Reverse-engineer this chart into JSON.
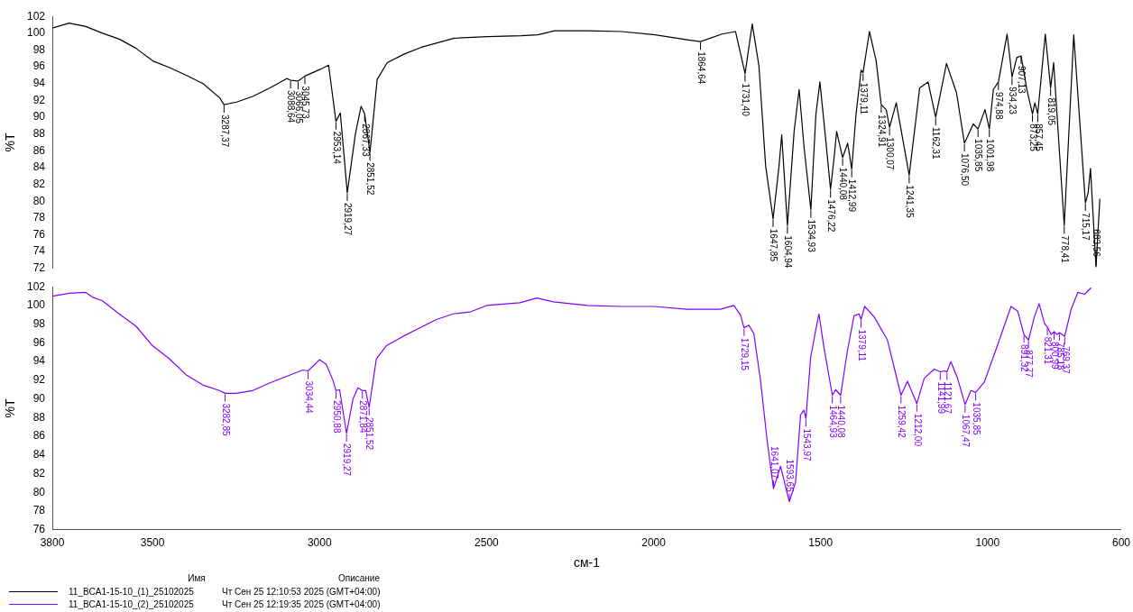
{
  "chart_data": [
    {
      "type": "line",
      "ylabel": "%T",
      "xlim": [
        3800,
        600
      ],
      "xticks": [
        3800,
        3500,
        3000,
        2500,
        2000,
        1500,
        1000,
        600
      ],
      "ylim": [
        72,
        102
      ],
      "yticks": [
        72,
        74,
        76,
        78,
        80,
        82,
        84,
        86,
        88,
        90,
        92,
        94,
        96,
        98,
        100,
        102
      ],
      "tick_labels": "y",
      "grid": false,
      "marker": "none",
      "line_style": "solid",
      "x": [
        3800,
        3750,
        3700,
        3650,
        3600,
        3550,
        3500,
        3450,
        3400,
        3350,
        3300,
        3287.37,
        3250,
        3200,
        3150,
        3100,
        3088.64,
        3066.05,
        3045.73,
        3000,
        2975,
        2953.14,
        2940,
        2919.27,
        2895,
        2878,
        2867.33,
        2851.52,
        2830,
        2800,
        2750,
        2700,
        2600,
        2500,
        2400,
        2350,
        2300,
        2200,
        2100,
        2000,
        1900,
        1864.64,
        1800,
        1760,
        1731.4,
        1710,
        1690,
        1670,
        1647.85,
        1630,
        1622,
        1604.94,
        1585,
        1570,
        1555,
        1534.93,
        1520,
        1508,
        1490,
        1476.22,
        1465,
        1458,
        1440.08,
        1425,
        1412.99,
        1400,
        1385,
        1379.11,
        1360,
        1340,
        1324.91,
        1310,
        1300.07,
        1280,
        1241.35,
        1210,
        1185,
        1162.31,
        1130,
        1100,
        1076.5,
        1050,
        1035.85,
        1015,
        1001.98,
        990,
        974.88,
        949,
        934.23,
        920,
        907.13,
        890,
        873.25,
        866,
        857.45,
        835,
        819.05,
        810,
        778.41,
        750,
        715.17,
        707,
        700,
        683.56,
        672
      ],
      "series": [
        {
          "name": "11_BCA1-15-10_(1)_25102025",
          "color": "#000000",
          "values": [
            100.6,
            101.2,
            100.8,
            100.0,
            99.3,
            98.2,
            96.7,
            95.9,
            95.0,
            94.0,
            92.3,
            91.5,
            91.8,
            92.5,
            93.5,
            94.6,
            94.4,
            94.3,
            94.9,
            95.7,
            96.2,
            89.5,
            90.5,
            81.0,
            88.0,
            91.3,
            90.4,
            85.8,
            94.5,
            96.5,
            97.5,
            98.3,
            99.4,
            99.6,
            99.7,
            99.8,
            100.3,
            100.3,
            100.2,
            99.8,
            99.2,
            99.0,
            99.9,
            100.2,
            95.2,
            101.1,
            96.1,
            84.2,
            77.9,
            84.2,
            87.9,
            77.1,
            88.3,
            93.3,
            86.3,
            79.0,
            90.3,
            94.2,
            87.1,
            81.4,
            85.4,
            88.3,
            85.2,
            86.9,
            83.8,
            90.4,
            95.6,
            95.3,
            100.2,
            96.7,
            91.5,
            90.9,
            88.8,
            91.7,
            83.1,
            93.5,
            94.2,
            90.0,
            96.4,
            92.9,
            86.9,
            89.2,
            88.6,
            90.9,
            88.6,
            93.3,
            94.2,
            99.9,
            94.8,
            97.1,
            97.3,
            93.3,
            90.4,
            91.7,
            90.4,
            99.9,
            93.5,
            96.5,
            77.1,
            99.8,
            79.8,
            81.0,
            83.9,
            72.2,
            80.3
          ]
        }
      ],
      "annotations": [
        {
          "text": "3287,37",
          "x": 3287.37,
          "y": 91.5
        },
        {
          "text": "3088,64",
          "x": 3088.64,
          "y": 94.4
        },
        {
          "text": "3066,05",
          "x": 3066.05,
          "y": 94.3
        },
        {
          "text": "3045,73",
          "x": 3045.73,
          "y": 94.9
        },
        {
          "text": "2953,14",
          "x": 2953.14,
          "y": 89.5
        },
        {
          "text": "2919,27",
          "x": 2919.27,
          "y": 81.0
        },
        {
          "text": "2867,33",
          "x": 2867.33,
          "y": 90.4
        },
        {
          "text": "2851,52",
          "x": 2851.52,
          "y": 85.8
        },
        {
          "text": "1864,64",
          "x": 1864.64,
          "y": 99.0
        },
        {
          "text": "1731,40",
          "x": 1731.4,
          "y": 95.2
        },
        {
          "text": "1647,85",
          "x": 1647.85,
          "y": 77.9
        },
        {
          "text": "1604,94",
          "x": 1604.94,
          "y": 77.1
        },
        {
          "text": "1534,93",
          "x": 1534.93,
          "y": 79.0
        },
        {
          "text": "1476,22",
          "x": 1476.22,
          "y": 81.4
        },
        {
          "text": "1440,08",
          "x": 1440.08,
          "y": 85.2
        },
        {
          "text": "1412,99",
          "x": 1412.99,
          "y": 83.8
        },
        {
          "text": "1379,11",
          "x": 1379.11,
          "y": 95.3
        },
        {
          "text": "1324,91",
          "x": 1324.91,
          "y": 91.5
        },
        {
          "text": "1300,07",
          "x": 1300.07,
          "y": 88.8
        },
        {
          "text": "1241,35",
          "x": 1241.35,
          "y": 83.1
        },
        {
          "text": "1162,31",
          "x": 1162.31,
          "y": 90.0
        },
        {
          "text": "1076,50",
          "x": 1076.5,
          "y": 86.9
        },
        {
          "text": "1035,85",
          "x": 1035.85,
          "y": 88.6
        },
        {
          "text": "1001,98",
          "x": 1001.98,
          "y": 88.6
        },
        {
          "text": "974,88",
          "x": 974.88,
          "y": 94.2
        },
        {
          "text": "934,23",
          "x": 934.23,
          "y": 94.8
        },
        {
          "text": "907,13",
          "x": 907.13,
          "y": 97.3
        },
        {
          "text": "873,25",
          "x": 873.25,
          "y": 90.4
        },
        {
          "text": "857,45",
          "x": 857.45,
          "y": 90.4
        },
        {
          "text": "819,05",
          "x": 819.05,
          "y": 93.5
        },
        {
          "text": "778,41",
          "x": 778.41,
          "y": 77.1
        },
        {
          "text": "715,17",
          "x": 715.17,
          "y": 79.8
        },
        {
          "text": "683,56",
          "x": 683.56,
          "y": 72.2
        }
      ]
    },
    {
      "type": "line",
      "ylabel": "%T",
      "xlabel": "см-1",
      "legend": "bottom",
      "legend_title": "Имя",
      "xlim": [
        3800,
        600
      ],
      "xticks": [
        3800,
        3500,
        3000,
        2500,
        2000,
        1500,
        1000,
        600
      ],
      "ylim": [
        76,
        102
      ],
      "yticks": [
        76,
        78,
        80,
        82,
        84,
        86,
        88,
        90,
        92,
        94,
        96,
        98,
        100,
        102
      ],
      "grid": false,
      "marker": "none",
      "line_style": "solid",
      "x": [
        3800,
        3750,
        3700,
        3680,
        3650,
        3600,
        3550,
        3500,
        3450,
        3400,
        3350,
        3300,
        3282.85,
        3250,
        3200,
        3150,
        3100,
        3050,
        3034.44,
        3000,
        2980,
        2960,
        2950.88,
        2940,
        2919.27,
        2900,
        2885,
        2871.84,
        2862,
        2851.52,
        2830,
        2800,
        2750,
        2700,
        2650,
        2600,
        2550,
        2500,
        2400,
        2350,
        2300,
        2200,
        2100,
        2000,
        1900,
        1800,
        1760,
        1740,
        1729.15,
        1715,
        1700,
        1680,
        1660,
        1641.07,
        1620,
        1593.65,
        1575,
        1560,
        1550,
        1543.97,
        1530,
        1515,
        1505,
        1490,
        1464.93,
        1455,
        1440.08,
        1420,
        1400,
        1385,
        1379.11,
        1368,
        1340,
        1300,
        1259.42,
        1240,
        1212,
        1190,
        1160,
        1141.99,
        1130,
        1121.67,
        1110,
        1090,
        1067.47,
        1050,
        1035.85,
        1010,
        970,
        930,
        910,
        891.32,
        877.77,
        860,
        846,
        830,
        821.31,
        810,
        800.99,
        793,
        785.18,
        769.37,
        750,
        730,
        710,
        690
      ],
      "series": [
        {
          "name": "11_BCA1-15-10_(2)_25102025",
          "color": "#8000ff",
          "values": [
            101.0,
            101.3,
            101.4,
            100.9,
            100.5,
            99.1,
            97.8,
            95.7,
            94.3,
            92.6,
            91.5,
            90.9,
            90.6,
            90.6,
            90.9,
            91.7,
            92.4,
            93.1,
            93.0,
            94.2,
            93.7,
            92.0,
            90.9,
            91.0,
            86.3,
            90.0,
            91.2,
            90.9,
            90.9,
            89.1,
            94.3,
            95.7,
            96.7,
            97.6,
            98.5,
            99.1,
            99.3,
            100.0,
            100.3,
            100.8,
            100.4,
            100.0,
            99.9,
            99.9,
            99.6,
            99.6,
            100.0,
            99.0,
            97.6,
            97.9,
            97.0,
            92.0,
            85.5,
            80.4,
            82.8,
            79.0,
            81.1,
            88.3,
            88.8,
            87.9,
            94.4,
            97.3,
            99.1,
            95.5,
            90.4,
            91.0,
            90.4,
            95.1,
            98.9,
            99.1,
            98.5,
            99.9,
            98.8,
            96.3,
            90.4,
            91.9,
            89.5,
            92.2,
            93.2,
            92.9,
            93.0,
            92.9,
            94.0,
            92.2,
            89.4,
            90.9,
            90.7,
            91.8,
            95.8,
            99.9,
            99.4,
            96.9,
            96.3,
            98.8,
            100.2,
            98.1,
            97.7,
            96.9,
            97.2,
            96.9,
            97.1,
            96.7,
            99.6,
            101.4,
            101.2,
            101.9
          ]
        }
      ],
      "annotations": [
        {
          "text": "3282,85",
          "x": 3282.85,
          "y": 90.6
        },
        {
          "text": "3034,44",
          "x": 3034.44,
          "y": 93.0
        },
        {
          "text": "2950,88",
          "x": 2950.88,
          "y": 90.9
        },
        {
          "text": "2919,27",
          "x": 2919.27,
          "y": 86.3
        },
        {
          "text": "2871,84",
          "x": 2871.84,
          "y": 90.9
        },
        {
          "text": "2851,52",
          "x": 2851.52,
          "y": 89.1
        },
        {
          "text": "1729,15",
          "x": 1729.15,
          "y": 97.6
        },
        {
          "text": "1641,07",
          "x": 1641.07,
          "y": 80.4
        },
        {
          "text": "1593,65",
          "x": 1593.65,
          "y": 79.0
        },
        {
          "text": "1543,97",
          "x": 1543.97,
          "y": 87.9
        },
        {
          "text": "1464,93",
          "x": 1464.93,
          "y": 90.4
        },
        {
          "text": "1440,08",
          "x": 1440.08,
          "y": 90.4
        },
        {
          "text": "1379,11",
          "x": 1379.11,
          "y": 98.5
        },
        {
          "text": "1259,42",
          "x": 1259.42,
          "y": 90.4
        },
        {
          "text": "1212,00",
          "x": 1212,
          "y": 89.5
        },
        {
          "text": "1141,99",
          "x": 1141.99,
          "y": 92.9
        },
        {
          "text": "1121,67",
          "x": 1121.67,
          "y": 92.9
        },
        {
          "text": "1067,47",
          "x": 1067.47,
          "y": 89.4
        },
        {
          "text": "1035,85",
          "x": 1035.85,
          "y": 90.7
        },
        {
          "text": "891,32",
          "x": 891.32,
          "y": 96.9
        },
        {
          "text": "877,77",
          "x": 877.77,
          "y": 96.3
        },
        {
          "text": "821,31",
          "x": 821.31,
          "y": 97.7
        },
        {
          "text": "800,99",
          "x": 800.99,
          "y": 97.2
        },
        {
          "text": "785,18",
          "x": 785.18,
          "y": 97.1
        },
        {
          "text": "769,37",
          "x": 769.37,
          "y": 96.7
        },
        "Описание",
        "Чт Сен 25 12:10:53 2025 (GMT+04:00)",
        "Чт Сен 25 12:19:35 2025 (GMT+04:00)"
      ]
    }
  ]
}
